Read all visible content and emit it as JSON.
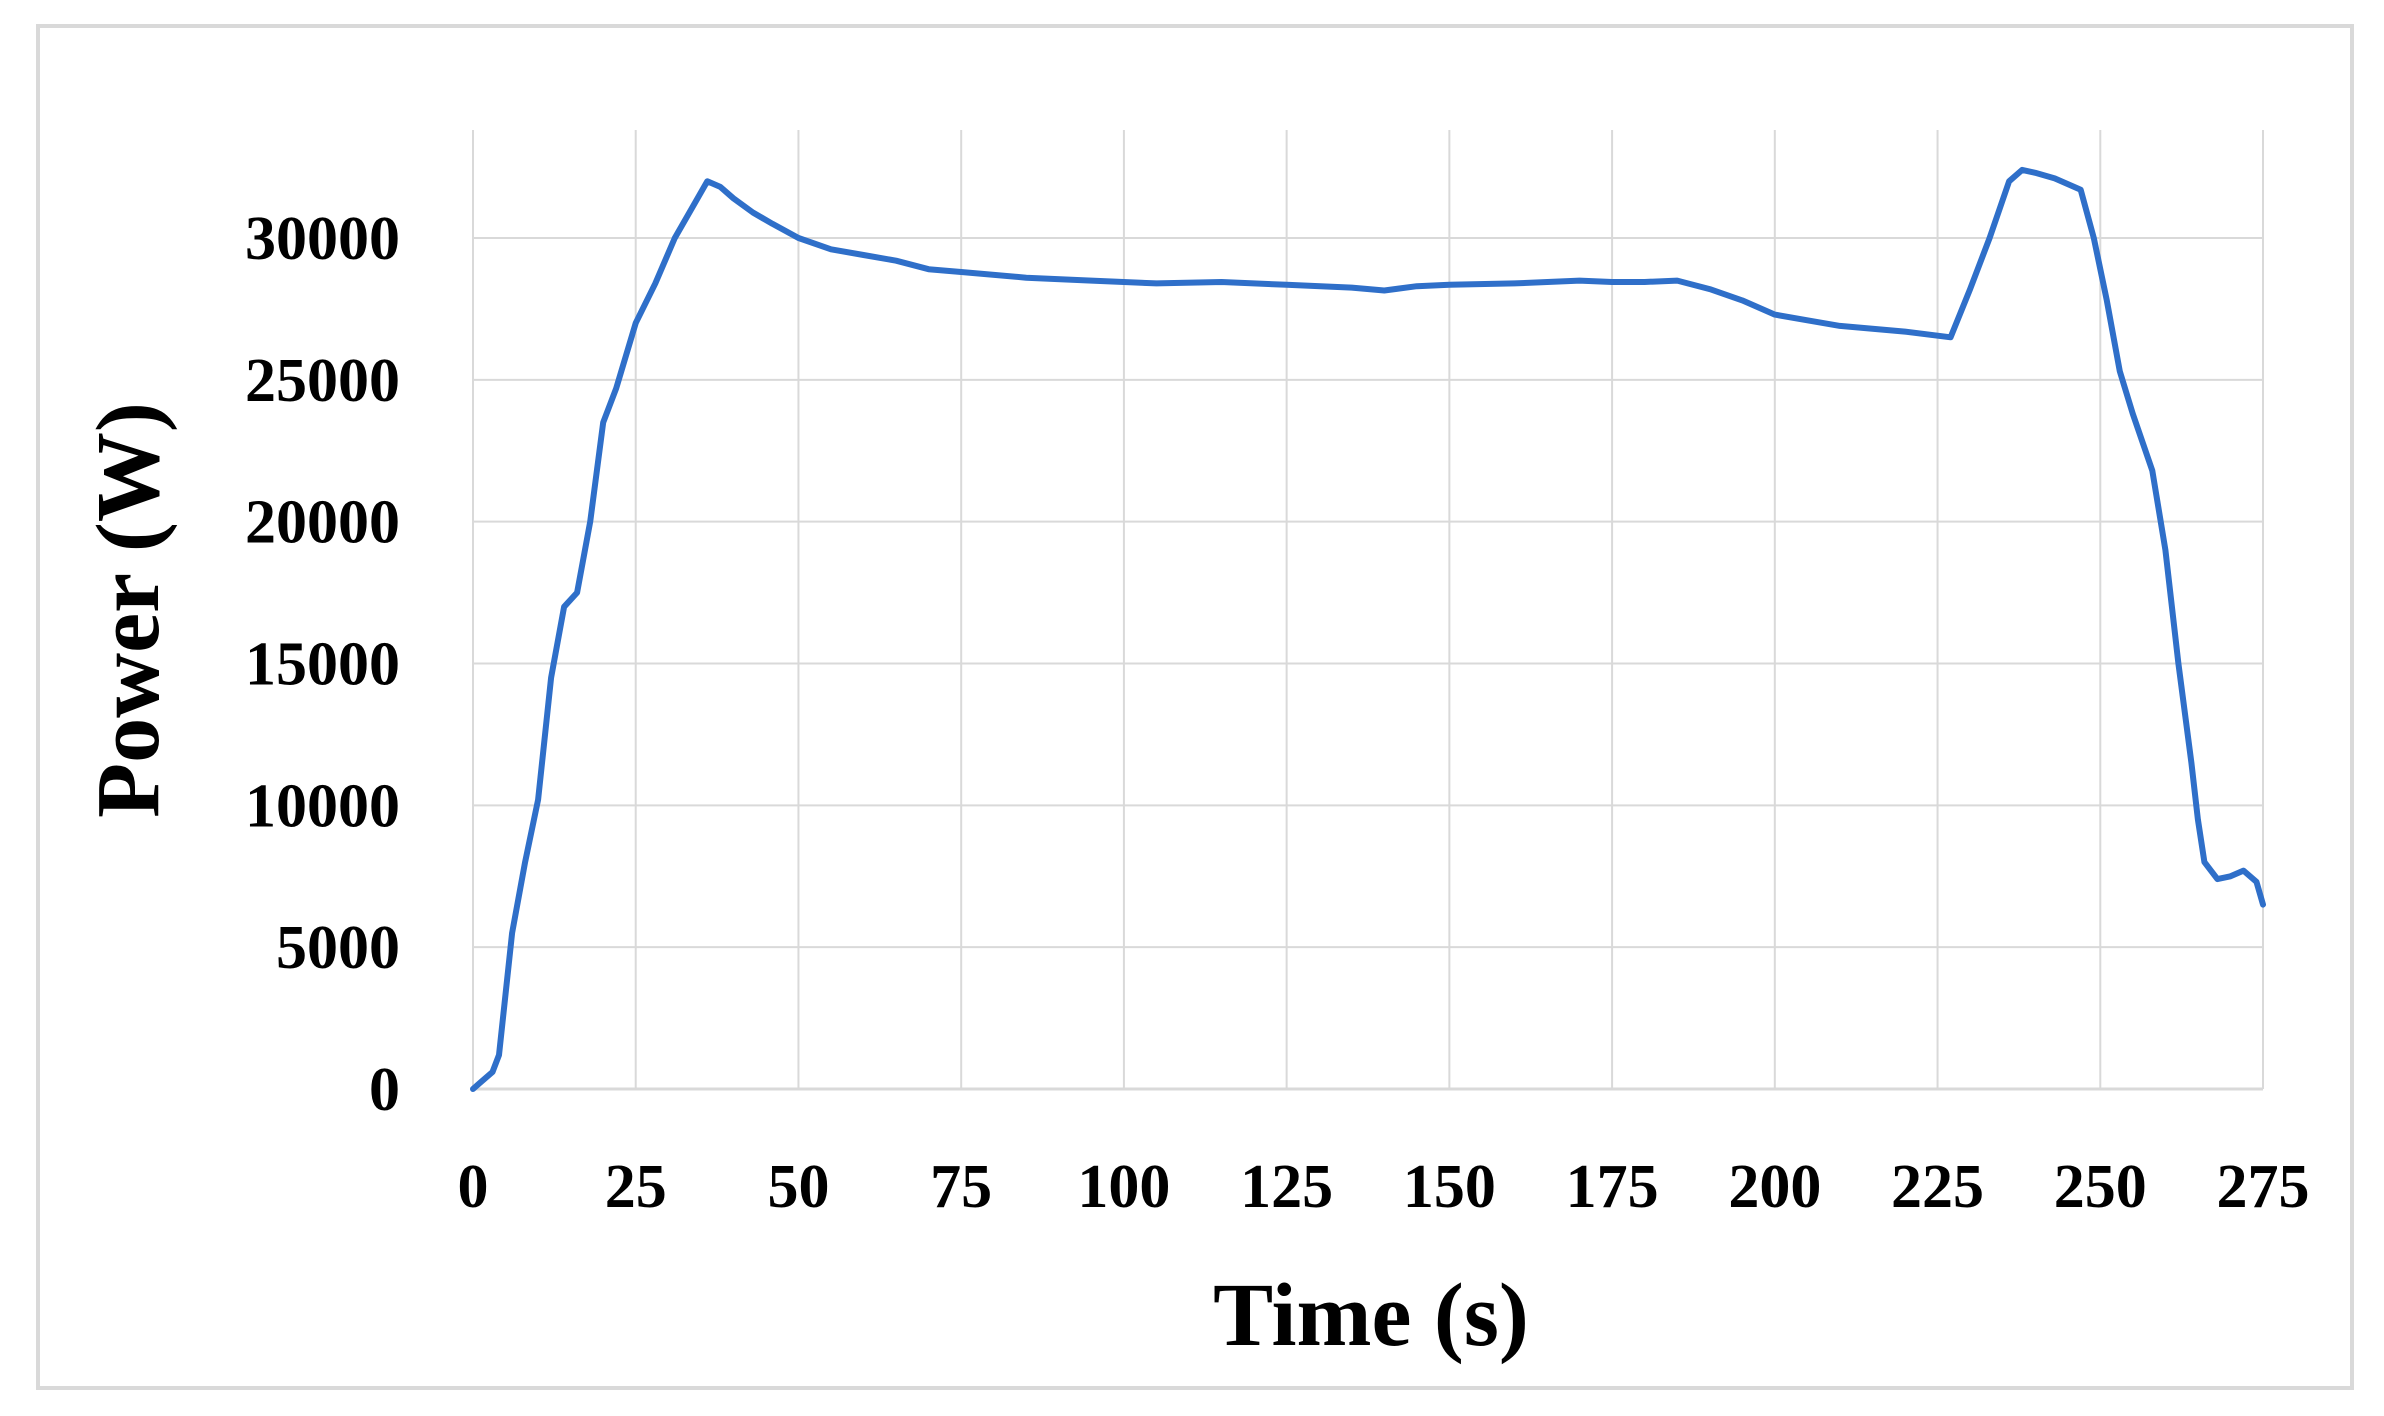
{
  "chart_data": {
    "type": "line",
    "title": "",
    "xlabel": "Time (s)",
    "ylabel": "Power (W)",
    "xlim": [
      0,
      275
    ],
    "ylim": [
      0,
      32000
    ],
    "xticks": [
      0,
      25,
      50,
      75,
      100,
      125,
      150,
      175,
      200,
      225,
      250,
      275
    ],
    "yticks": [
      0,
      5000,
      10000,
      15000,
      20000,
      25000,
      30000
    ],
    "grid": true,
    "legend": "none",
    "colors": {
      "line": "#2f6fc9",
      "grid": "#d9d9d9",
      "frame": "#d9d9d9"
    },
    "series": [
      {
        "x": [
          0,
          1,
          3,
          4,
          6,
          8,
          10,
          12,
          14,
          16,
          18,
          20,
          22,
          25,
          28,
          31,
          34,
          36,
          38,
          40,
          43,
          46,
          50,
          55,
          60,
          65,
          70,
          75,
          85,
          95,
          105,
          115,
          125,
          135,
          140,
          145,
          150,
          160,
          170,
          175,
          180,
          185,
          190,
          195,
          200,
          205,
          210,
          220,
          227,
          230,
          233,
          236,
          238,
          240,
          243,
          247,
          249,
          251,
          253,
          255,
          258,
          260,
          262,
          264,
          265,
          266,
          268,
          270,
          272,
          274,
          275
        ],
        "y": [
          0,
          200,
          600,
          1200,
          5500,
          8000,
          10200,
          14500,
          17000,
          17500,
          20000,
          23500,
          24700,
          27000,
          28400,
          30000,
          31200,
          32000,
          31800,
          31400,
          30900,
          30500,
          30000,
          29600,
          29400,
          29200,
          28900,
          28800,
          28600,
          28500,
          28400,
          28450,
          28350,
          28250,
          28150,
          28300,
          28350,
          28400,
          28500,
          28450,
          28450,
          28500,
          28200,
          27800,
          27300,
          27100,
          26900,
          26700,
          26500,
          28200,
          30000,
          32000,
          32400,
          32300,
          32100,
          31700,
          30000,
          27800,
          25300,
          23800,
          21800,
          19000,
          15000,
          11500,
          9500,
          8000,
          7400,
          7500,
          7700,
          7300,
          6500
        ]
      }
    ]
  }
}
